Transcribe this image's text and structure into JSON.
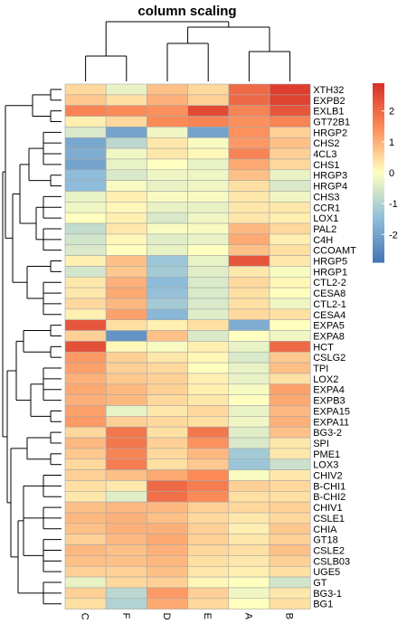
{
  "chart_data": {
    "type": "heatmap",
    "title": "column scaling",
    "columns": [
      "C",
      "F",
      "D",
      "E",
      "A",
      "B"
    ],
    "rows": [
      "XTH32",
      "EXPB2",
      "EXLB1",
      "GT72B1",
      "HRGP2",
      "CHS2",
      "4CL3",
      "CHS1",
      "HRGP3",
      "HRGP4",
      "CHS3",
      "CCR1",
      "LOX1",
      "PAL2",
      "C4H",
      "CCOAMT",
      "HRGP5",
      "HRGP1",
      "CTL2-2",
      "CESA8",
      "CTL2-1",
      "CESA4",
      "EXPA5",
      "EXPA8",
      "HCT",
      "CSLG2",
      "TPI",
      "LOX2",
      "EXPA4",
      "EXPB3",
      "EXPA15",
      "EXPA11",
      "BG3-2",
      "SPI",
      "PME1",
      "LOX3",
      "CHIV2",
      "B-CHI1",
      "B-CHI2",
      "CHIV1",
      "CSLE1",
      "CHIA",
      "GT18",
      "CSLE2",
      "CSLB03",
      "UGE5",
      "GT",
      "BG3-1",
      "BG1"
    ],
    "values": [
      [
        0.5,
        -0.3,
        0.8,
        0.5,
        2.0,
        2.7
      ],
      [
        0.7,
        0.4,
        1.0,
        0.6,
        2.0,
        2.6
      ],
      [
        1.6,
        1.5,
        1.4,
        2.5,
        1.6,
        2.3
      ],
      [
        0.2,
        0.5,
        1.5,
        1.6,
        1.4,
        1.6
      ],
      [
        -0.5,
        -2.0,
        -0.2,
        -2.0,
        1.4,
        0.6
      ],
      [
        -1.9,
        -0.9,
        0.3,
        -0.1,
        1.3,
        0.8
      ],
      [
        -1.8,
        -0.2,
        0.3,
        0.1,
        1.6,
        0.6
      ],
      [
        -2.0,
        -0.3,
        0.0,
        -0.3,
        1.1,
        0.5
      ],
      [
        -1.5,
        -0.5,
        -0.2,
        -0.2,
        0.8,
        -0.3
      ],
      [
        -1.5,
        -0.1,
        -0.3,
        -0.2,
        0.4,
        -0.5
      ],
      [
        -0.3,
        0.2,
        -0.1,
        -0.1,
        0.3,
        -0.2
      ],
      [
        -0.2,
        0.1,
        -0.3,
        -0.3,
        0.3,
        0.3
      ],
      [
        0.0,
        0.2,
        -0.5,
        -0.2,
        0.3,
        0.2
      ],
      [
        -0.8,
        0.3,
        -0.1,
        -0.1,
        0.9,
        0.5
      ],
      [
        -0.6,
        0.1,
        -0.4,
        -0.3,
        1.1,
        0.2
      ],
      [
        -0.5,
        0.0,
        -0.3,
        0.0,
        0.8,
        0.4
      ],
      [
        0.2,
        0.8,
        -1.3,
        -0.3,
        2.3,
        0.3
      ],
      [
        -0.6,
        0.7,
        -1.2,
        -0.4,
        0.3,
        -0.1
      ],
      [
        0.3,
        1.0,
        -1.5,
        -0.5,
        0.5,
        0.1
      ],
      [
        0.3,
        1.1,
        -1.4,
        -0.5,
        0.4,
        0.0
      ],
      [
        0.5,
        0.9,
        -1.2,
        -0.5,
        0.4,
        -0.2
      ],
      [
        0.2,
        1.2,
        -1.6,
        -0.4,
        0.5,
        0.4
      ],
      [
        2.3,
        0.4,
        0.2,
        0.4,
        -1.8,
        0.0
      ],
      [
        0.6,
        -2.3,
        0.8,
        -0.5,
        0.0,
        -0.2
      ],
      [
        2.4,
        0.1,
        -0.1,
        0.2,
        -0.3,
        2.0
      ],
      [
        1.3,
        0.6,
        0.3,
        0.1,
        -0.5,
        0.7
      ],
      [
        1.2,
        0.6,
        0.5,
        0.0,
        -0.3,
        0.8
      ],
      [
        1.0,
        0.7,
        0.6,
        0.2,
        -0.3,
        0.4
      ],
      [
        1.1,
        0.9,
        0.6,
        0.2,
        -0.1,
        1.2
      ],
      [
        1.0,
        0.9,
        0.5,
        0.3,
        0.0,
        1.1
      ],
      [
        1.2,
        -0.3,
        0.3,
        0.5,
        -0.3,
        0.9
      ],
      [
        1.3,
        0.6,
        0.5,
        0.4,
        -0.2,
        1.0
      ],
      [
        0.5,
        1.8,
        0.4,
        1.8,
        -0.4,
        0.8
      ],
      [
        0.9,
        1.8,
        0.6,
        1.4,
        -0.5,
        0.3
      ],
      [
        0.7,
        1.6,
        0.5,
        0.9,
        -1.2,
        0.3
      ],
      [
        0.5,
        1.7,
        0.4,
        0.7,
        -1.3,
        -0.7
      ],
      [
        0.6,
        0.8,
        1.1,
        1.5,
        -0.1,
        0.3
      ],
      [
        0.4,
        0.3,
        2.0,
        1.7,
        0.6,
        0.5
      ],
      [
        0.3,
        -0.4,
        1.9,
        1.5,
        0.4,
        0.4
      ],
      [
        0.8,
        0.9,
        0.9,
        0.6,
        0.5,
        0.6
      ],
      [
        0.9,
        1.0,
        0.8,
        0.5,
        0.3,
        0.5
      ],
      [
        0.8,
        1.0,
        1.0,
        0.6,
        0.2,
        0.7
      ],
      [
        0.6,
        0.9,
        1.1,
        0.6,
        0.3,
        0.6
      ],
      [
        0.9,
        0.8,
        1.0,
        0.5,
        0.4,
        0.8
      ],
      [
        0.8,
        0.8,
        0.9,
        0.4,
        0.3,
        0.6
      ],
      [
        0.6,
        0.6,
        0.8,
        0.3,
        0.2,
        0.4
      ],
      [
        -0.3,
        0.5,
        0.6,
        0.1,
        0.0,
        -0.6
      ],
      [
        0.6,
        -0.9,
        1.3,
        0.6,
        -0.2,
        0.3
      ],
      [
        0.4,
        -1.0,
        1.1,
        0.5,
        0.0,
        0.4
      ]
    ],
    "legend": {
      "position": "right",
      "ticks": [
        2,
        1,
        0,
        -1,
        -2
      ],
      "range": [
        -2.9,
        2.9
      ],
      "palette": [
        "#4575B4",
        "#91BFDB",
        "#FFFFBF",
        "#FC8D59",
        "#D73027"
      ]
    },
    "column_dendrogram": {
      "left": [
        2,
        3
      ],
      "children": [
        {
          "nodes": [
            [
              0,
              1
            ],
            "rest"
          ]
        }
      ]
    },
    "grid": false
  }
}
